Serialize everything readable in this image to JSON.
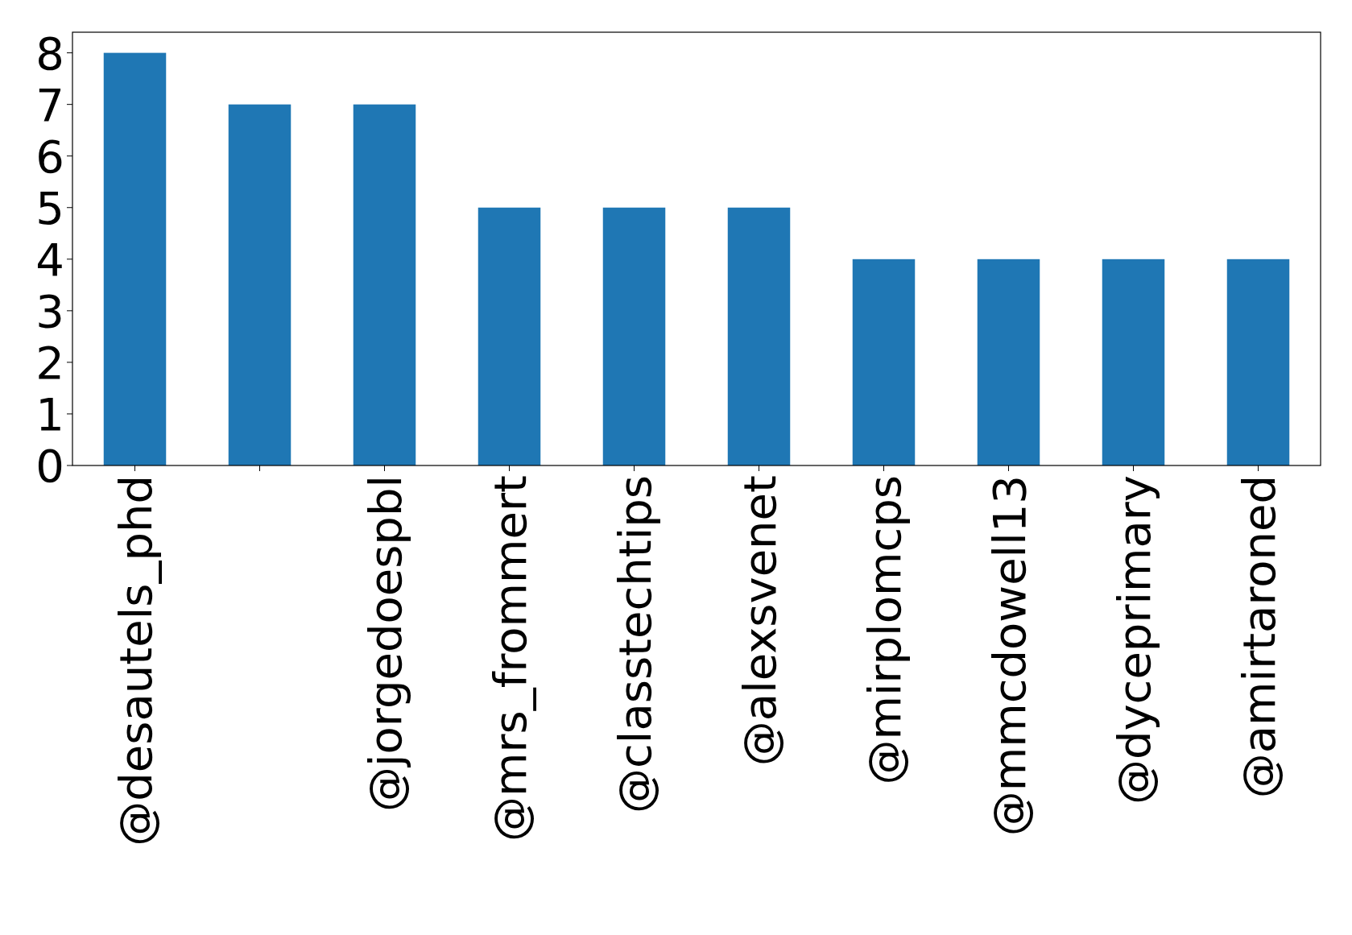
{
  "chart_data": {
    "type": "bar",
    "categories": [
      "@desautels_phd",
      null,
      "@jorgedoespbl",
      "@mrs_frommert",
      "@classtechtips",
      "@alexsvenet",
      "@mirplomcps",
      "@mmcdowell13",
      "@dyceprimary",
      "@amirtaroned"
    ],
    "values": [
      8,
      7,
      7,
      5,
      5,
      5,
      4,
      4,
      4,
      4
    ],
    "color": "#1f77b4",
    "ylim": [
      0,
      8.4
    ],
    "yticks": [
      0,
      1,
      2,
      3,
      4,
      5,
      6,
      7,
      8
    ],
    "grid": false
  }
}
